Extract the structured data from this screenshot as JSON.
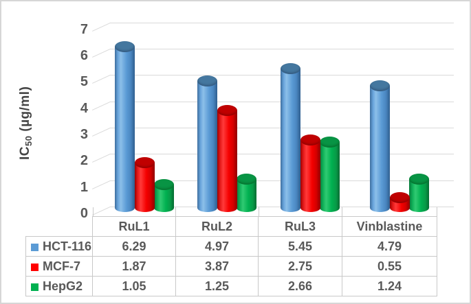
{
  "chart_data": {
    "type": "bar",
    "subtype": "3d-cylinder-clustered",
    "title": "",
    "ylabel": "IC50 (µg/ml)",
    "ylabel_parts": {
      "prefix": "IC",
      "sub": "50",
      "suffix": " (µg/ml)"
    },
    "xlabel": "",
    "categories": [
      "RuL1",
      "RuL2",
      "RuL3",
      "Vinblastine"
    ],
    "series": [
      {
        "name": "HCT-116",
        "color": "#5B9BD5",
        "values": [
          6.29,
          4.97,
          5.45,
          4.79
        ]
      },
      {
        "name": "MCF-7",
        "color": "#FF0000",
        "values": [
          1.87,
          3.87,
          2.75,
          0.55
        ]
      },
      {
        "name": "HepG2",
        "color": "#00B050",
        "values": [
          1.05,
          1.25,
          2.66,
          1.24
        ]
      }
    ],
    "yticks": [
      0,
      1,
      2,
      3,
      4,
      5,
      6,
      7
    ],
    "ylim": [
      0,
      7
    ],
    "grid": true,
    "legend_position": "data-table-left-column",
    "tick_color": "#595959",
    "grid_color": "#d9d9d9",
    "table_border_color": "#c8c8c8"
  }
}
